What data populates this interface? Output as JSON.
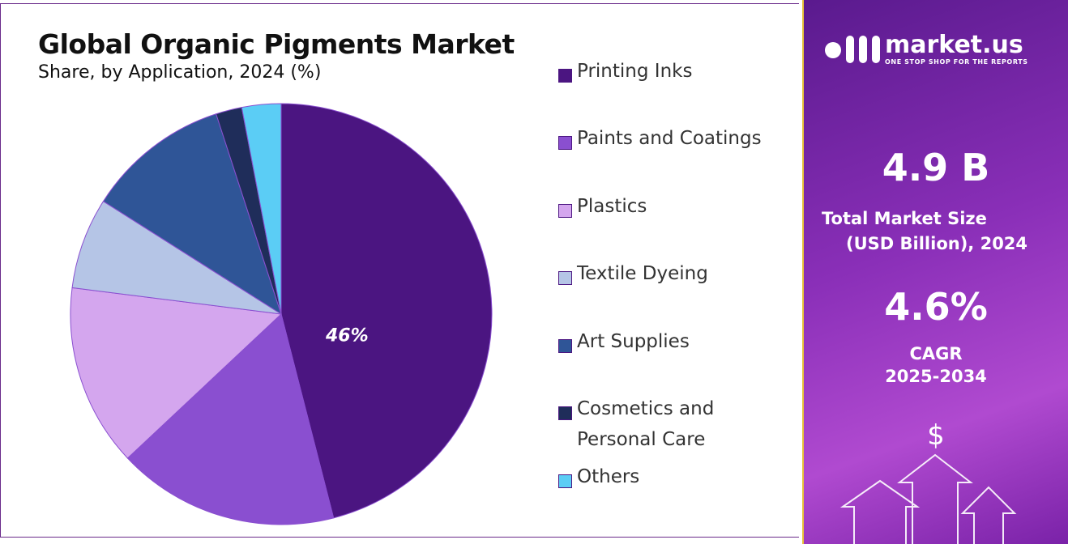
{
  "chart_data": {
    "type": "pie",
    "title": "Global Organic Pigments Market",
    "subtitle": "Share, by Application, 2024 (%)",
    "categories": [
      "Printing Inks",
      "Paints and Coatings",
      "Plastics",
      "Textile Dyeing",
      "Art Supplies",
      "Cosmetics and Personal Care",
      "Others"
    ],
    "values": [
      46,
      17,
      14,
      7,
      11,
      2,
      3
    ],
    "value_labels": [
      "46%",
      null,
      null,
      null,
      null,
      null,
      null
    ],
    "colors": [
      "#4b1581",
      "#8a4fd0",
      "#d4a6ee",
      "#b5c5e6",
      "#2f5597",
      "#1f2d5a",
      "#5bcdf5"
    ]
  },
  "side_panel": {
    "logo_name": "market.us",
    "tagline": "ONE STOP SHOP FOR THE REPORTS",
    "market_size_value": "4.9 B",
    "market_size_label_1": "Total Market Size",
    "market_size_label_2": "(USD Billion), 2024",
    "cagr_value": "4.6%",
    "cagr_label": "CAGR",
    "cagr_period": "2025-2034",
    "currency_icon": "$"
  }
}
